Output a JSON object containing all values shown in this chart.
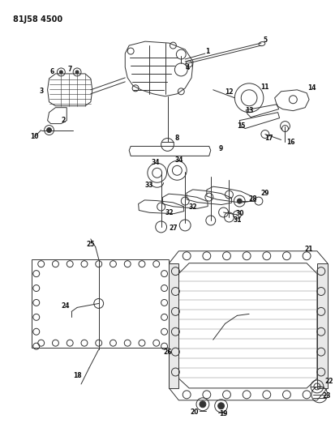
{
  "title": "81J58 4500",
  "bg_color": "#ffffff",
  "line_color": "#333333",
  "text_color": "#111111",
  "fig_width": 4.13,
  "fig_height": 5.33,
  "dpi": 100
}
